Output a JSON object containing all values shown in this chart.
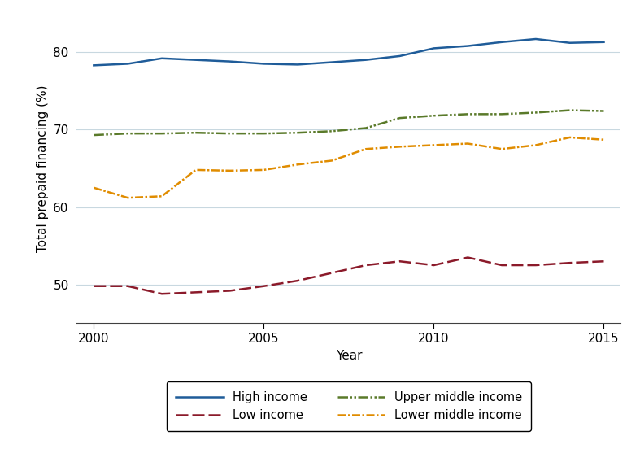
{
  "years": [
    2000,
    2001,
    2002,
    2003,
    2004,
    2005,
    2006,
    2007,
    2008,
    2009,
    2010,
    2011,
    2012,
    2013,
    2014,
    2015
  ],
  "high_income": [
    78.3,
    78.5,
    79.2,
    79.0,
    78.8,
    78.5,
    78.4,
    78.7,
    79.0,
    79.5,
    80.5,
    80.8,
    81.3,
    81.7,
    81.2,
    81.3
  ],
  "upper_middle_income": [
    69.3,
    69.5,
    69.5,
    69.6,
    69.5,
    69.5,
    69.6,
    69.8,
    70.2,
    71.5,
    71.8,
    72.0,
    72.0,
    72.2,
    72.5,
    72.4
  ],
  "lower_middle_income": [
    62.5,
    61.2,
    61.4,
    64.8,
    64.7,
    64.8,
    65.5,
    66.0,
    67.5,
    67.8,
    68.0,
    68.2,
    67.5,
    68.0,
    69.0,
    68.7
  ],
  "low_income": [
    49.8,
    49.8,
    48.8,
    49.0,
    49.2,
    49.8,
    50.5,
    51.5,
    52.5,
    53.0,
    52.5,
    53.5,
    52.5,
    52.5,
    52.8,
    53.0
  ],
  "high_income_color": "#1f5c99",
  "upper_middle_income_color": "#5a7a2a",
  "lower_middle_income_color": "#e08c00",
  "low_income_color": "#8b1a2a",
  "xlabel": "Year",
  "ylabel": "Total prepaid financing (%)",
  "ylim": [
    45,
    85
  ],
  "yticks": [
    50,
    60,
    70,
    80
  ],
  "xticks": [
    2000,
    2005,
    2010,
    2015
  ],
  "grid_color": "#c8d8e0",
  "background_color": "#ffffff"
}
